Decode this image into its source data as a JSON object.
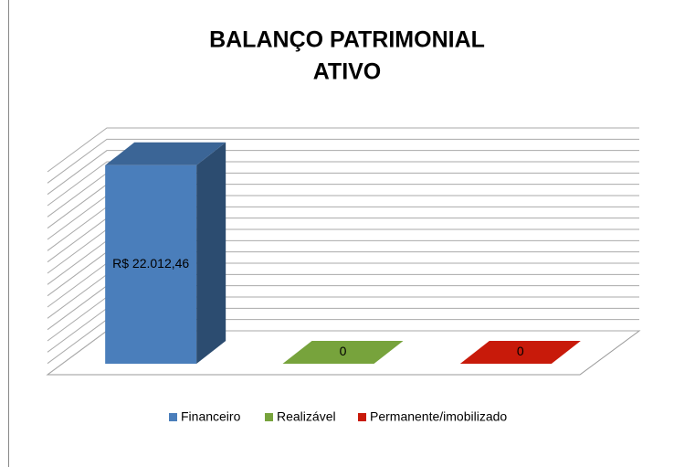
{
  "chart_data": {
    "type": "bar3d",
    "title": "BALANÇO PATRIMONIAL",
    "subtitle": "ATIVO",
    "series": [
      {
        "name": "Financeiro",
        "color": "#4a7ebb",
        "values": [
          22012.46
        ],
        "value_labels": [
          "R$ 22.012,46"
        ]
      },
      {
        "name": "Realizável",
        "color": "#77a33c",
        "values": [
          0
        ],
        "value_labels": [
          "0"
        ]
      },
      {
        "name": "Permanente/imobilizado",
        "color": "#c81a0a",
        "values": [
          0
        ],
        "value_labels": [
          "0"
        ]
      }
    ],
    "ylim": [
      0,
      22500
    ],
    "yticks": [
      0,
      1250,
      2500,
      3750,
      5000,
      6250,
      7500,
      8750,
      10000,
      11250,
      12500,
      13750,
      15000,
      16250,
      17500,
      18750,
      20000,
      21250,
      22500
    ],
    "grid": true,
    "legend": "bottom"
  }
}
